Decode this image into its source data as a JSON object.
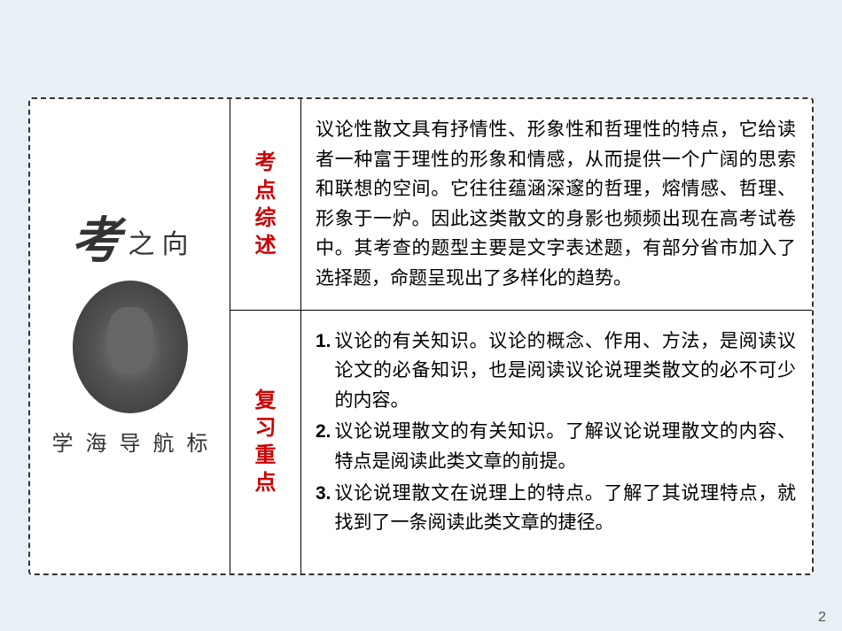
{
  "left_panel": {
    "kao": "考",
    "zhi": "之",
    "xiang": "向",
    "bottom_chars": [
      "学",
      "海",
      "导",
      "航",
      "标"
    ]
  },
  "rows": [
    {
      "label": "考点综述",
      "content": "议论性散文具有抒情性、形象性和哲理性的特点，它给读者一种富于理性的形象和情感，从而提供一个广阔的思索和联想的空间。它往往蕴涵深邃的哲理，熔情感、哲理、形象于一炉。因此这类散文的身影也频频出现在高考试卷中。其考查的题型主要是文字表述题，有部分省市加入了选择题，命题呈现出了多样化的趋势。"
    },
    {
      "label": "复习重点",
      "items": [
        {
          "num": "1.",
          "text": "议论的有关知识。议论的概念、作用、方法，是阅读议论文的必备知识，也是阅读议论说理类散文的必不可少的内容。"
        },
        {
          "num": "2.",
          "text": "议论说理散文的有关知识。了解议论说理散文的内容、特点是阅读此类文章的前提。"
        },
        {
          "num": "3.",
          "text": "议论说理散文在说理上的特点。了解了其说理特点，就找到了一条阅读此类文章的捷径。"
        }
      ]
    }
  ],
  "page_number": "2",
  "colors": {
    "background": "#e8f0f5",
    "label_color": "#cc0000",
    "text_color": "#000000",
    "border_color": "#000000"
  }
}
